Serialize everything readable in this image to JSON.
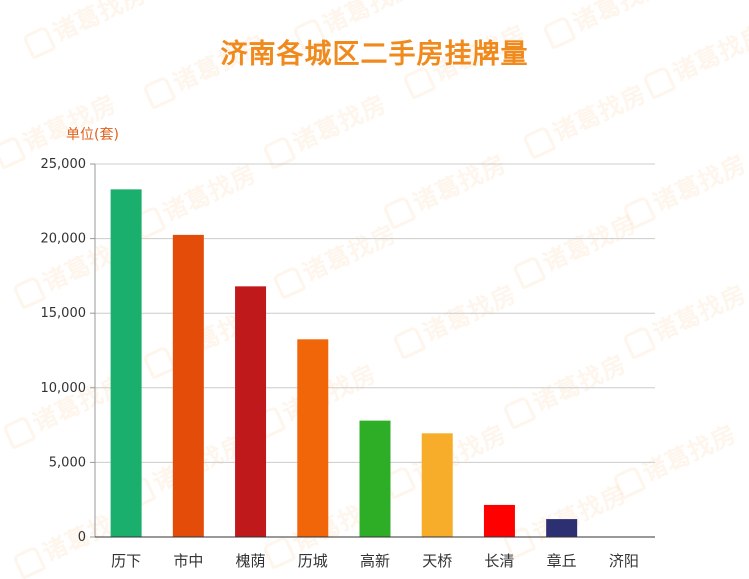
{
  "title": "济南各城区二手房挂牌量",
  "unit_label": "单位(套)",
  "watermark_text": "诸葛找房",
  "chart_data": {
    "type": "bar",
    "title": "济南各城区二手房挂牌量",
    "xlabel": "",
    "ylabel": "单位(套)",
    "categories": [
      "历下",
      "市中",
      "槐荫",
      "历城",
      "高新",
      "天桥",
      "长清",
      "章丘",
      "济阳"
    ],
    "values": [
      23300,
      20250,
      16800,
      13250,
      7800,
      6950,
      2150,
      1200,
      0
    ],
    "colors": [
      "#1aaf6c",
      "#e44c0a",
      "#c0191c",
      "#f2660a",
      "#2eae27",
      "#f7ac2a",
      "#ff0000",
      "#2d2f73",
      "#cccccc"
    ],
    "ylim": [
      0,
      25000
    ],
    "yticks": [
      0,
      5000,
      10000,
      15000,
      20000,
      25000
    ],
    "ytick_labels": [
      "0",
      "5,000",
      "10,000",
      "15,000",
      "20,000",
      "25,000"
    ],
    "grid": true,
    "legend": "none"
  },
  "colors": {
    "title": "#f08a1c",
    "unit": "#e0601a",
    "grid": "#cccccc",
    "axis": "#999999"
  }
}
